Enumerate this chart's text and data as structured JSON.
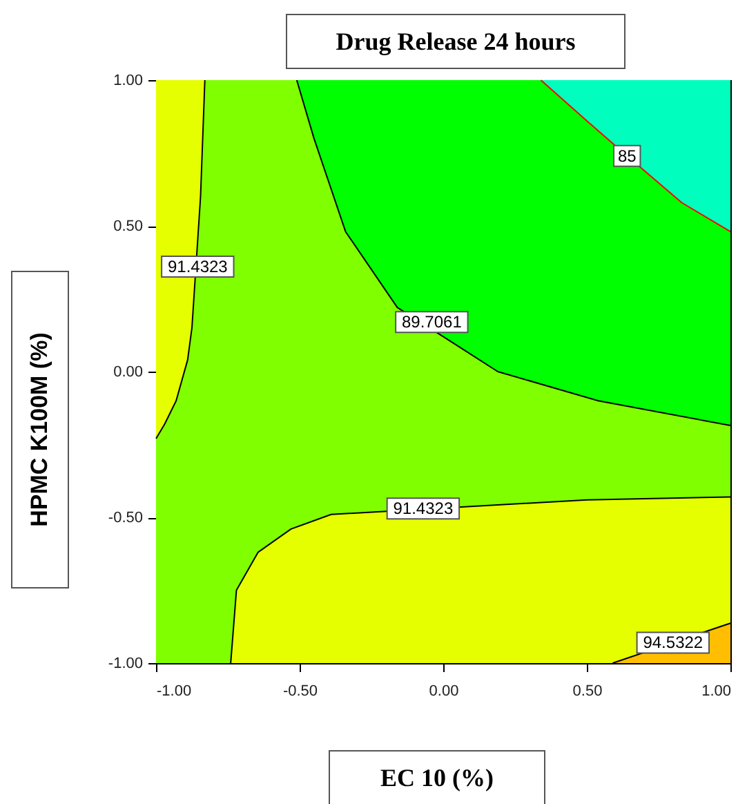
{
  "chart_data": {
    "type": "line",
    "title": "Drug Release 24 hours",
    "xlabel": "EC 10 (%)",
    "ylabel": "HPMC K100M (%)",
    "xlim": [
      -1,
      1
    ],
    "ylim": [
      -1,
      1
    ],
    "xticks": [
      {
        "value": -1,
        "label": "-1.00"
      },
      {
        "value": -0.5,
        "label": "-0.50"
      },
      {
        "value": 0,
        "label": "0.00"
      },
      {
        "value": 0.5,
        "label": "0.50"
      },
      {
        "value": 1,
        "label": "1.00"
      }
    ],
    "yticks": [
      {
        "value": -1,
        "label": "-1.00"
      },
      {
        "value": -0.5,
        "label": "-0.50"
      },
      {
        "value": 0,
        "label": "0.00"
      },
      {
        "value": 0.5,
        "label": "0.50"
      },
      {
        "value": 1,
        "label": "1.00"
      }
    ],
    "grid": false,
    "series": [
      {
        "color": "#000000",
        "x": [
          -1,
          -0.97,
          -0.93,
          -0.89,
          -0.875,
          -0.845,
          -0.83
        ],
        "values": [
          -0.23,
          -0.18,
          -0.1,
          0.04,
          0.15,
          0.6,
          1
        ]
      },
      {
        "color": "#000000",
        "x": [
          -0.51,
          -0.45,
          -0.34,
          -0.16,
          0,
          0.19,
          0.54,
          1
        ],
        "values": [
          1,
          0.8,
          0.48,
          0.22,
          0.12,
          0,
          -0.1,
          -0.185
        ]
      },
      {
        "color": "#ff0000",
        "x": [
          0.34,
          0.5,
          0.64,
          0.83,
          1
        ],
        "values": [
          1,
          0.86,
          0.74,
          0.58,
          0.48
        ]
      },
      {
        "color": "#000000",
        "x": [
          -0.74,
          -0.72,
          -0.645,
          -0.53,
          -0.39,
          0.5,
          1
        ],
        "values": [
          -1,
          -0.75,
          -0.62,
          -0.54,
          -0.49,
          -0.44,
          -0.43
        ]
      },
      {
        "color": "#000000",
        "x": [
          0.59,
          1
        ],
        "values": [
          -1,
          -0.863
        ]
      }
    ],
    "annotations": [
      {
        "text": "91.4323",
        "x": -0.855,
        "y": 0.36
      },
      {
        "text": "89.7061",
        "x": -0.04,
        "y": 0.17
      },
      {
        "text": "85",
        "x": 0.64,
        "y": 0.74
      },
      {
        "text": "91.4323",
        "x": -0.07,
        "y": -0.47
      },
      {
        "text": "94.5322",
        "x": 0.8,
        "y": -0.93
      }
    ]
  }
}
